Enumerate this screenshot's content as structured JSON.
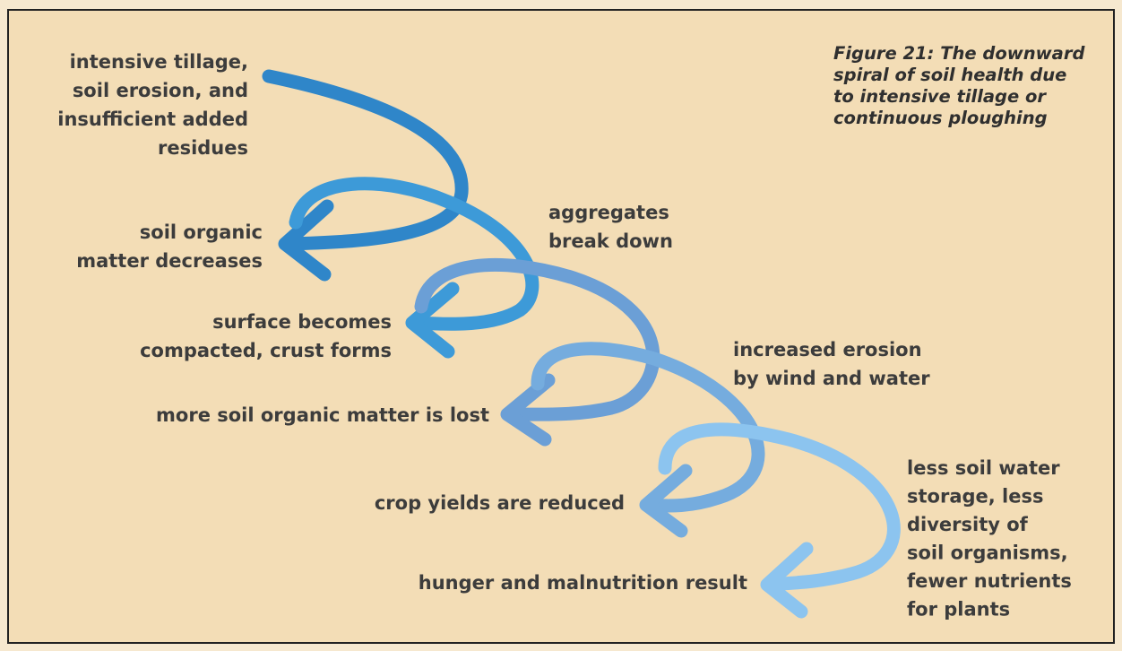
{
  "caption": [
    "Figure 21: The downward",
    "spiral of soil health due",
    "to intensive tillage or",
    "continuous ploughing"
  ],
  "labels": [
    {
      "lines": [
        "intensive tillage,",
        "soil erosion, and",
        "insufficient added",
        "residues"
      ]
    },
    {
      "lines": [
        "soil organic",
        "matter decreases"
      ]
    },
    {
      "lines": [
        "aggregates",
        "break down"
      ]
    },
    {
      "lines": [
        "surface becomes",
        "compacted, crust forms"
      ]
    },
    {
      "lines": [
        "increased erosion",
        "by wind and water"
      ]
    },
    {
      "lines": [
        "more soil organic matter is lost"
      ]
    },
    {
      "lines": [
        "crop yields are reduced"
      ]
    },
    {
      "lines": [
        "less soil water",
        "storage, less",
        "diversity of",
        "soil organisms,",
        "fewer nutrients",
        "for plants"
      ]
    },
    {
      "lines": [
        "hunger and malnutrition result"
      ]
    }
  ]
}
